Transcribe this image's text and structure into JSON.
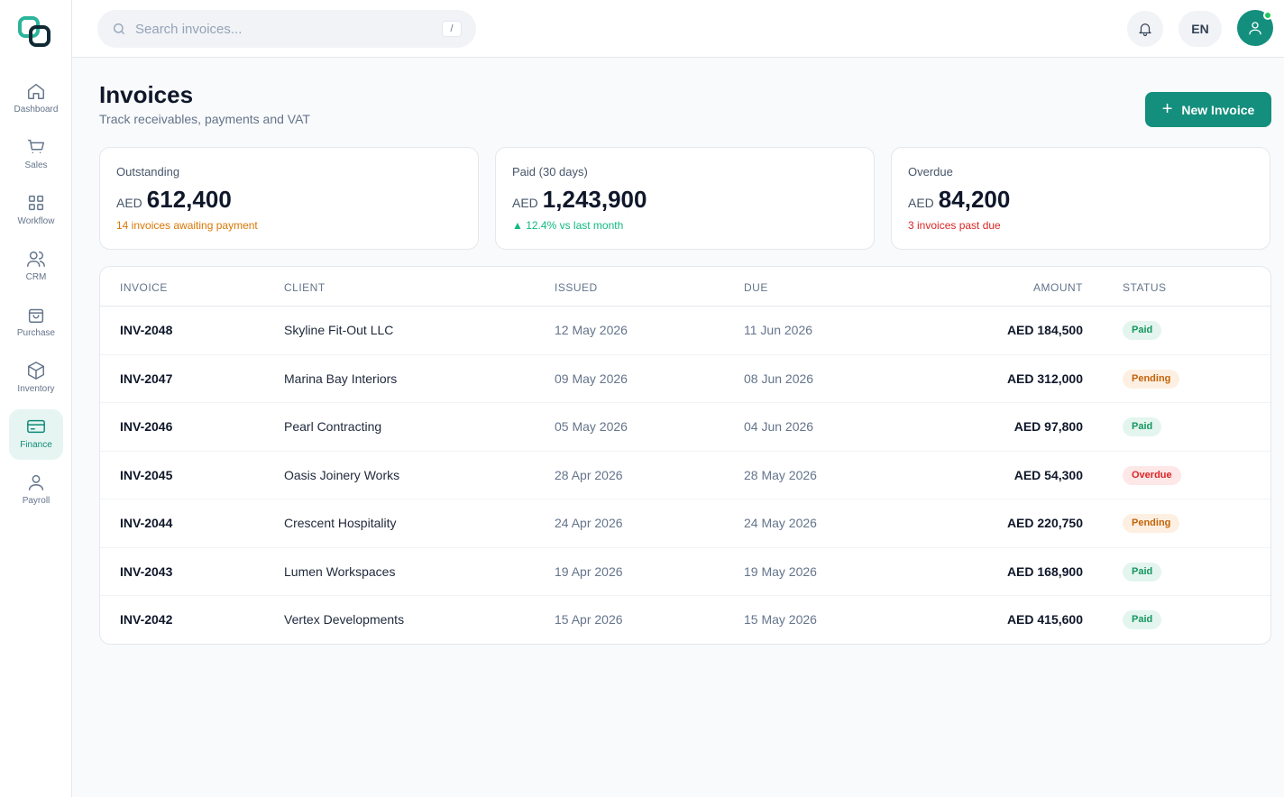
{
  "nav": {
    "items": [
      {
        "label": "Dashboard",
        "icon": "home-icon"
      },
      {
        "label": "Sales",
        "icon": "cart-icon"
      },
      {
        "label": "Workflow",
        "icon": "grid-icon"
      },
      {
        "label": "CRM",
        "icon": "users-icon"
      },
      {
        "label": "Purchase",
        "icon": "bag-icon"
      },
      {
        "label": "Inventory",
        "icon": "box-icon"
      },
      {
        "label": "Finance",
        "icon": "card-icon",
        "active": true
      },
      {
        "label": "Payroll",
        "icon": "user-icon"
      }
    ]
  },
  "search": {
    "placeholder": "Search invoices...",
    "shortcut": "/"
  },
  "header": {
    "language": "EN"
  },
  "page": {
    "title": "Invoices",
    "subtitle": "Track receivables, payments and VAT",
    "new_button": "New Invoice"
  },
  "stats": {
    "outstanding": {
      "label": "Outstanding",
      "currency": "AED",
      "amount": "612,400",
      "note": "14 invoices awaiting payment"
    },
    "paid": {
      "label": "Paid (30 days)",
      "currency": "AED",
      "amount": "1,243,900",
      "note": "▲ 12.4% vs last month"
    },
    "overdue": {
      "label": "Overdue",
      "currency": "AED",
      "amount": "84,200",
      "note": "3 invoices past due"
    }
  },
  "table": {
    "headers": {
      "invoice": "INVOICE",
      "client": "CLIENT",
      "issued": "ISSUED",
      "due": "DUE",
      "amount": "AMOUNT",
      "status": "STATUS"
    },
    "rows": [
      {
        "invoice": "INV-2048",
        "client": "Skyline Fit-Out LLC",
        "issued": "12 May 2026",
        "due": "11 Jun 2026",
        "amount": "AED 184,500",
        "status": "Paid"
      },
      {
        "invoice": "INV-2047",
        "client": "Marina Bay Interiors",
        "issued": "09 May 2026",
        "due": "08 Jun 2026",
        "amount": "AED 312,000",
        "status": "Pending"
      },
      {
        "invoice": "INV-2046",
        "client": "Pearl Contracting",
        "issued": "05 May 2026",
        "due": "04 Jun 2026",
        "amount": "AED 97,800",
        "status": "Paid"
      },
      {
        "invoice": "INV-2045",
        "client": "Oasis Joinery Works",
        "issued": "28 Apr 2026",
        "due": "28 May 2026",
        "amount": "AED 54,300",
        "status": "Overdue"
      },
      {
        "invoice": "INV-2044",
        "client": "Crescent Hospitality",
        "issued": "24 Apr 2026",
        "due": "24 May 2026",
        "amount": "AED 220,750",
        "status": "Pending"
      },
      {
        "invoice": "INV-2043",
        "client": "Lumen Workspaces",
        "issued": "19 Apr 2026",
        "due": "19 May 2026",
        "amount": "AED 168,900",
        "status": "Paid"
      },
      {
        "invoice": "INV-2042",
        "client": "Vertex Developments",
        "issued": "15 Apr 2026",
        "due": "15 May 2026",
        "amount": "AED 415,600",
        "status": "Paid"
      }
    ]
  },
  "colors": {
    "accent": "#148f7d",
    "paid": "#15965f",
    "pending": "#c2630a",
    "overdue": "#dc2626"
  }
}
